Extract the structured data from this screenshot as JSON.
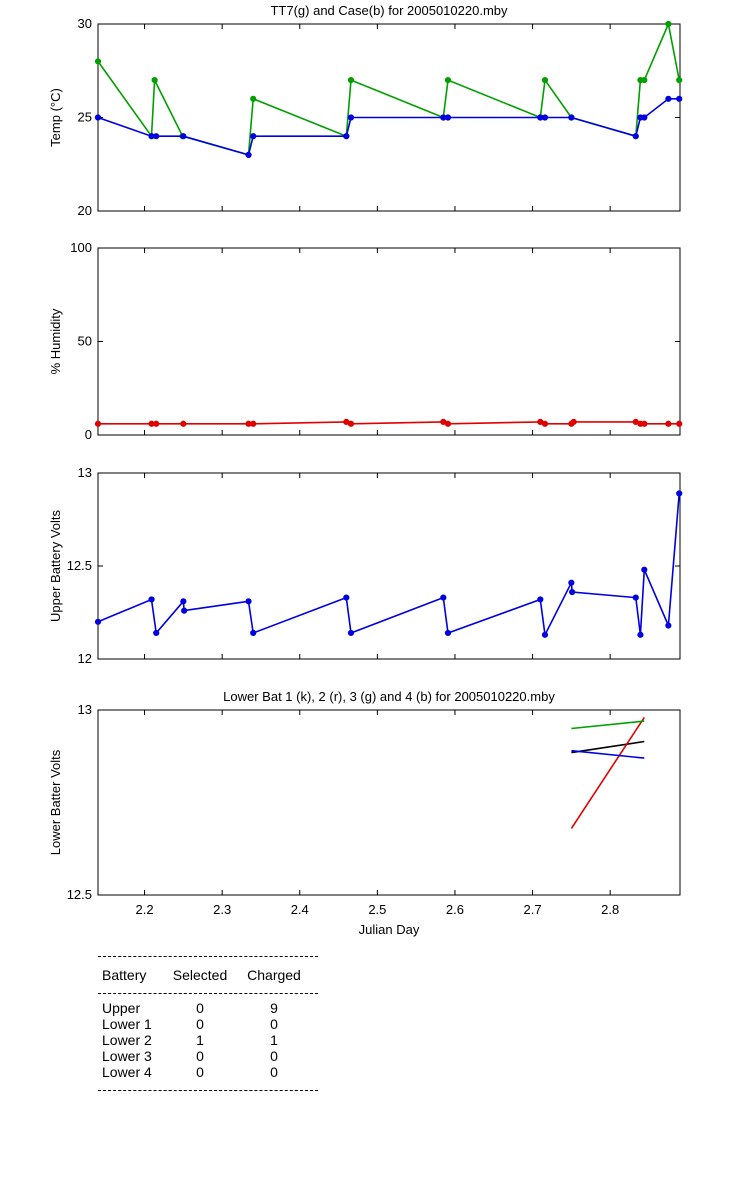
{
  "chart_data": [
    {
      "type": "line",
      "title": "TT7(g) and Case(b) for 2005010220.mby",
      "xlabel": "",
      "ylabel": "Temp  (°C)",
      "xlim": [
        2.14,
        2.89
      ],
      "ylim": [
        20,
        30
      ],
      "yticks": [
        20,
        25,
        30
      ],
      "grid": false,
      "series": [
        {
          "color": "#00a000",
          "x": [
            2.14,
            2.209,
            2.213,
            2.249,
            2.334,
            2.34,
            2.46,
            2.466,
            2.585,
            2.591,
            2.71,
            2.716,
            2.75,
            2.833,
            2.839,
            2.844,
            2.875,
            2.889
          ],
          "y": [
            28,
            24,
            27,
            24,
            23,
            26,
            24,
            27,
            25,
            27,
            25,
            27,
            25,
            24,
            27,
            27,
            30,
            27
          ]
        },
        {
          "color": "#0000e0",
          "x": [
            2.14,
            2.209,
            2.215,
            2.25,
            2.334,
            2.34,
            2.46,
            2.466,
            2.585,
            2.591,
            2.71,
            2.716,
            2.75,
            2.833,
            2.839,
            2.844,
            2.875,
            2.889
          ],
          "y": [
            25,
            24,
            24,
            24,
            23,
            24,
            24,
            25,
            25,
            25,
            25,
            25,
            25,
            24,
            25,
            25,
            26,
            26
          ]
        }
      ]
    },
    {
      "type": "line",
      "title": "",
      "xlabel": "",
      "ylabel": "% Humidity",
      "xlim": [
        2.14,
        2.89
      ],
      "ylim": [
        0,
        100
      ],
      "yticks": [
        0,
        50,
        100
      ],
      "grid": false,
      "series": [
        {
          "color": "#e00000",
          "x": [
            2.14,
            2.209,
            2.215,
            2.25,
            2.334,
            2.34,
            2.46,
            2.466,
            2.585,
            2.591,
            2.71,
            2.716,
            2.75,
            2.753,
            2.833,
            2.839,
            2.844,
            2.875,
            2.889
          ],
          "y": [
            6,
            6,
            6,
            6,
            6,
            6,
            7,
            6,
            7,
            6,
            7,
            6,
            6,
            7,
            7,
            6,
            6,
            6,
            6
          ]
        }
      ]
    },
    {
      "type": "line",
      "title": "",
      "xlabel": "",
      "ylabel": "Upper Battery Volts",
      "xlim": [
        2.14,
        2.89
      ],
      "ylim": [
        12,
        13
      ],
      "yticks": [
        12,
        12.5,
        13
      ],
      "grid": false,
      "series": [
        {
          "color": "#0000e0",
          "x": [
            2.14,
            2.209,
            2.215,
            2.25,
            2.251,
            2.334,
            2.34,
            2.46,
            2.466,
            2.585,
            2.591,
            2.71,
            2.716,
            2.75,
            2.751,
            2.833,
            2.839,
            2.844,
            2.875,
            2.889
          ],
          "y": [
            12.2,
            12.32,
            12.14,
            12.31,
            12.26,
            12.31,
            12.14,
            12.33,
            12.14,
            12.33,
            12.14,
            12.32,
            12.13,
            12.41,
            12.36,
            12.33,
            12.13,
            12.48,
            12.18,
            12.89
          ]
        }
      ]
    },
    {
      "type": "line",
      "title": "Lower Bat 1 (k), 2 (r), 3 (g) and 4 (b) for 2005010220.mby",
      "xlabel": "Julian Day",
      "ylabel": "Lower Batter Volts",
      "xlim": [
        2.14,
        2.89
      ],
      "ylim": [
        12.5,
        13
      ],
      "yticks": [
        12.5,
        13
      ],
      "xticks": [
        2.2,
        2.3,
        2.4,
        2.5,
        2.6,
        2.7,
        2.8
      ],
      "xticklabels": [
        "2.2",
        "2.3",
        "2.4",
        "2.5",
        "2.6",
        "2.7",
        "2.8"
      ],
      "grid": false,
      "series": [
        {
          "color": "#000000",
          "x": [
            2.75,
            2.844
          ],
          "y": [
            12.885,
            12.915
          ]
        },
        {
          "color": "#e00000",
          "x": [
            2.75,
            2.844
          ],
          "y": [
            12.68,
            12.98
          ]
        },
        {
          "color": "#00a000",
          "x": [
            2.75,
            2.844
          ],
          "y": [
            12.95,
            12.97
          ]
        },
        {
          "color": "#0000e0",
          "x": [
            2.75,
            2.844
          ],
          "y": [
            12.89,
            12.87
          ]
        }
      ]
    }
  ],
  "table": {
    "headers": [
      "Battery",
      "Selected",
      "Charged"
    ],
    "rows": [
      [
        "Upper",
        "0",
        "9"
      ],
      [
        "Lower 1",
        "0",
        "0"
      ],
      [
        "Lower 2",
        "1",
        "1"
      ],
      [
        "Lower 3",
        "0",
        "0"
      ],
      [
        "Lower 4",
        "0",
        "0"
      ]
    ]
  }
}
